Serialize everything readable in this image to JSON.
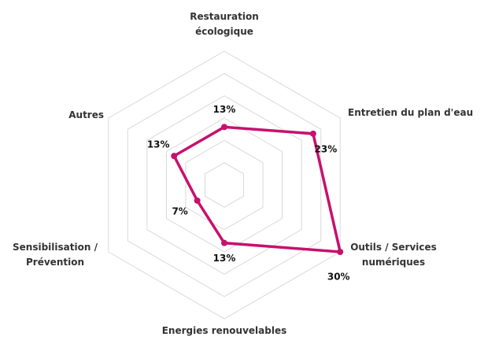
{
  "chart_data": {
    "type": "radar",
    "categories": [
      "Restauration écologique",
      "Entretien du plan d'eau",
      "Outils / Services numériques",
      "Energies renouvelables",
      "Sensibilisation / Prévention",
      "Autres"
    ],
    "values": [
      13,
      23,
      30,
      13,
      7,
      13
    ],
    "value_labels": [
      "13%",
      "23%",
      "30%",
      "13%",
      "7%",
      "13%"
    ],
    "color": "#c8106e",
    "ylim": [
      0,
      30
    ],
    "yticks": [
      0,
      5,
      10,
      15,
      20,
      25,
      30
    ],
    "grid": true
  }
}
